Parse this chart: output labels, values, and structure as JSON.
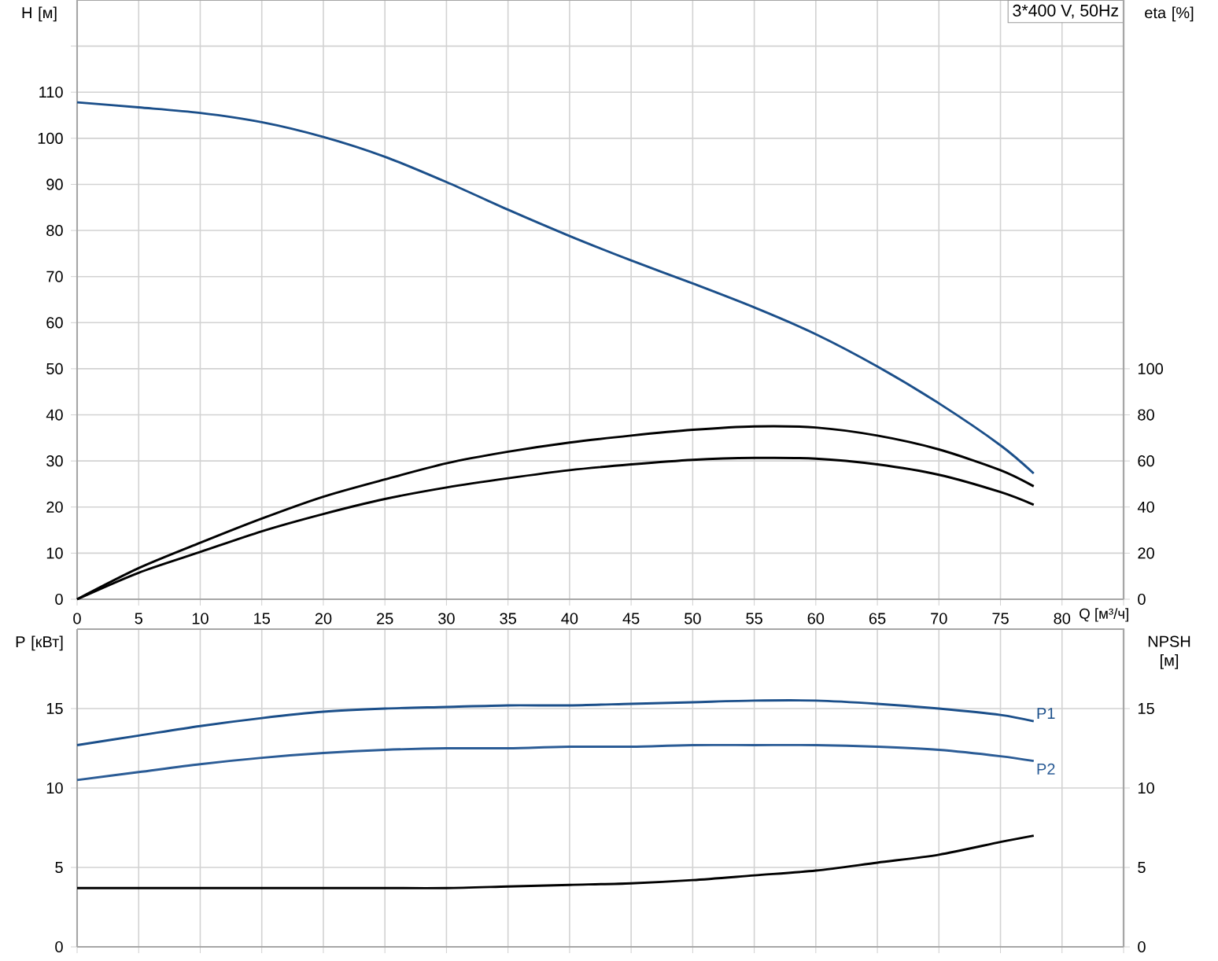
{
  "chart_data": [
    {
      "type": "line",
      "xlabel": "Q [м³/ч]",
      "ylabel": "H [м]",
      "y2label": "eta [%]",
      "annotations": [
        "3*400 V, 50Hz"
      ],
      "x": [
        0,
        5,
        10,
        15,
        20,
        25,
        30,
        35,
        40,
        45,
        50,
        55,
        60,
        65,
        70,
        75,
        77.7
      ],
      "xlim": [
        0,
        85
      ],
      "xticks": [
        0,
        5,
        10,
        15,
        20,
        25,
        30,
        35,
        40,
        45,
        50,
        55,
        60,
        65,
        70,
        75,
        80,
        {
          "value": 85,
          "label": null
        }
      ],
      "ylim": [
        0,
        130
      ],
      "yticks": [
        0,
        10,
        20,
        30,
        40,
        50,
        60,
        70,
        80,
        90,
        100,
        110,
        {
          "value": 120,
          "label": null
        }
      ],
      "y2lim": [
        0,
        260
      ],
      "y2ticks": [
        0,
        20,
        40,
        60,
        80,
        100
      ],
      "grid": true,
      "series": [
        {
          "color": "#1b4f8a",
          "values": [
            107.8,
            106.7,
            105.5,
            103.5,
            100.3,
            96,
            90.5,
            84.5,
            78.8,
            73.5,
            68.5,
            63.3,
            57.5,
            50.5,
            42.5,
            33.4,
            27.3
          ]
        },
        {
          "color": "#000000",
          "axis": "y2",
          "values": [
            0,
            13.5,
            24.5,
            35,
            44.5,
            52,
            59,
            64,
            68,
            71,
            73.5,
            75,
            74.5,
            71,
            65,
            56,
            49
          ]
        },
        {
          "color": "#000000",
          "axis": "y2",
          "values": [
            0,
            11.5,
            20.5,
            29.5,
            37,
            43.5,
            48.5,
            52.5,
            56,
            58.5,
            60.5,
            61.3,
            61,
            58.5,
            54,
            46.5,
            41
          ]
        }
      ]
    },
    {
      "type": "line",
      "ylabel": "P [кВт]",
      "y2label": "NPSH [м]",
      "x": [
        0,
        5,
        10,
        15,
        20,
        25,
        30,
        35,
        40,
        45,
        50,
        55,
        60,
        65,
        70,
        75,
        77.7
      ],
      "xlim": [
        0,
        85
      ],
      "xticks": [
        {
          "value": 0,
          "label": null
        },
        {
          "value": 5,
          "label": null
        },
        {
          "value": 10,
          "label": null
        },
        {
          "value": 15,
          "label": null
        },
        {
          "value": 20,
          "label": null
        },
        {
          "value": 25,
          "label": null
        },
        {
          "value": 30,
          "label": null
        },
        {
          "value": 35,
          "label": null
        },
        {
          "value": 40,
          "label": null
        },
        {
          "value": 45,
          "label": null
        },
        {
          "value": 50,
          "label": null
        },
        {
          "value": 55,
          "label": null
        },
        {
          "value": 60,
          "label": null
        },
        {
          "value": 65,
          "label": null
        },
        {
          "value": 70,
          "label": null
        },
        {
          "value": 75,
          "label": null
        },
        {
          "value": 80,
          "label": null
        },
        {
          "value": 85,
          "label": null
        }
      ],
      "ylim": [
        0,
        20
      ],
      "yticks": [
        0,
        5,
        10,
        15
      ],
      "y2lim": [
        0,
        20
      ],
      "y2ticks": [
        0,
        5,
        10,
        15
      ],
      "grid": true,
      "tick_labels": "y",
      "series": [
        {
          "name": "P1",
          "color": "#1b4f8a",
          "values": [
            12.7,
            13.3,
            13.9,
            14.4,
            14.8,
            15.0,
            15.1,
            15.2,
            15.2,
            15.3,
            15.4,
            15.5,
            15.5,
            15.3,
            15.0,
            14.6,
            14.2
          ]
        },
        {
          "name": "P2",
          "color": "#2b5c96",
          "values": [
            10.5,
            11.0,
            11.5,
            11.9,
            12.2,
            12.4,
            12.5,
            12.5,
            12.6,
            12.6,
            12.7,
            12.7,
            12.7,
            12.6,
            12.4,
            12.0,
            11.7
          ]
        },
        {
          "color": "#000000",
          "axis": "y2",
          "values": [
            3.7,
            3.7,
            3.7,
            3.7,
            3.7,
            3.7,
            3.7,
            3.8,
            3.9,
            4.0,
            4.2,
            4.5,
            4.8,
            5.3,
            5.8,
            6.6,
            7.0
          ]
        }
      ]
    }
  ]
}
